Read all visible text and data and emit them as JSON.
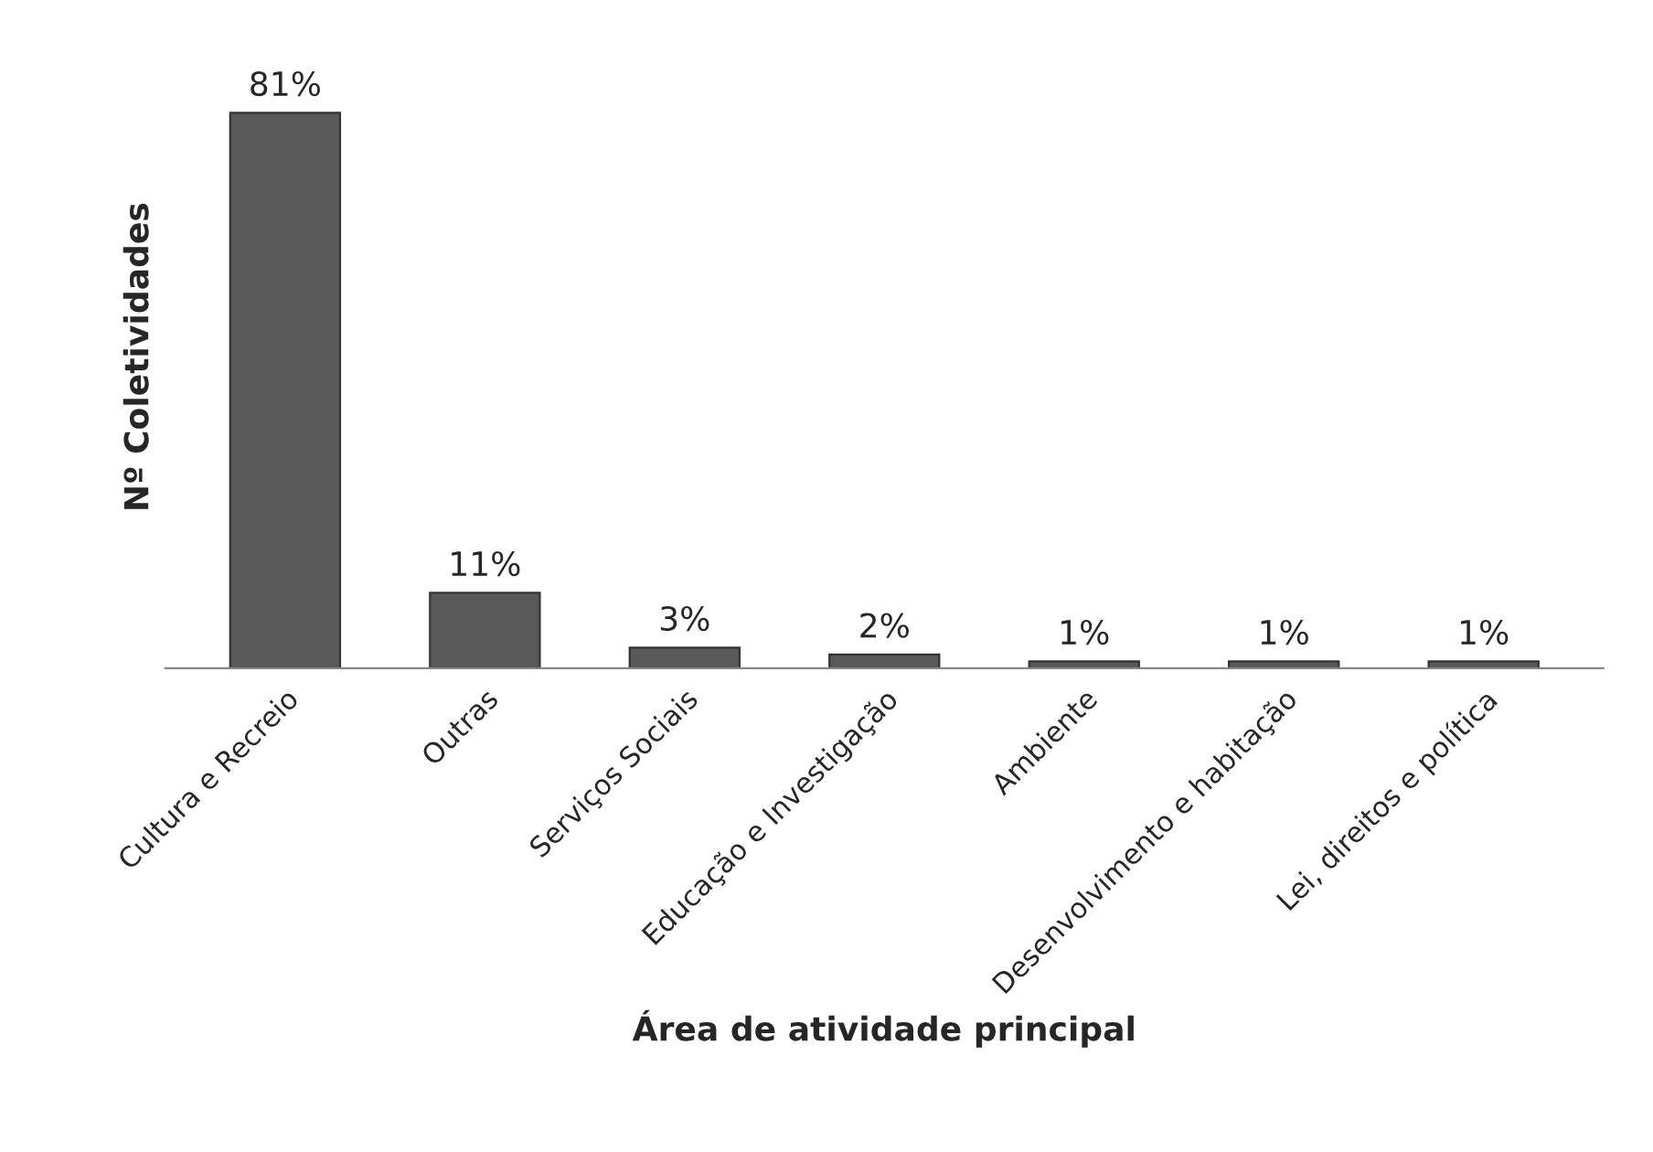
{
  "chart_data": {
    "type": "bar",
    "xlabel": "Área de atividade principal",
    "ylabel": "Nº Coletividades",
    "categories": [
      "Cultura e Recreio",
      "Outras",
      "Serviços Sociais",
      "Educação e Investigação",
      "Ambiente",
      "Desenvolvimento e habitação",
      "Lei, direitos e política"
    ],
    "values": [
      81,
      11,
      3,
      2,
      1,
      1,
      1
    ],
    "value_labels": [
      "81%",
      "11%",
      "3%",
      "2%",
      "1%",
      "1%",
      "1%"
    ],
    "color": "#595959",
    "grid": false,
    "legend": false
  }
}
